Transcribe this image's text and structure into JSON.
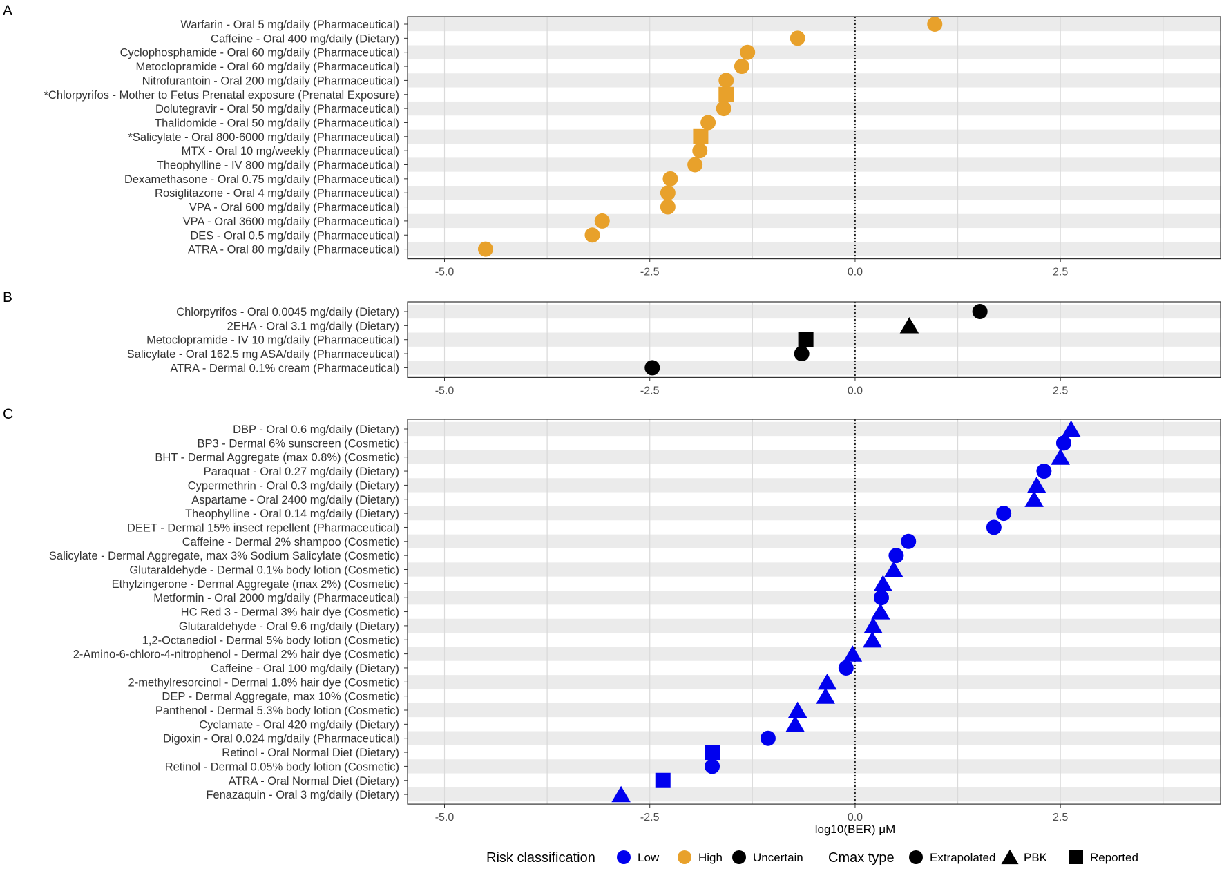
{
  "colors": {
    "Low": "#0000ee",
    "High": "#e8a12b",
    "Uncertain": "#000000",
    "stripe": "#ebebeb",
    "grid": "#dadada",
    "panel_border": "#333333"
  },
  "chart_data": [
    {
      "panel": "A",
      "type": "scatter",
      "x_ticks": [
        -5.0,
        -2.5,
        0.0,
        2.5
      ],
      "x_tick_labels": [
        "-5.0",
        "-2.5",
        "0.0",
        "2.5"
      ],
      "xlim": [
        -5.45,
        4.45
      ],
      "reference_line_x": 0,
      "xlabel": "",
      "points": [
        {
          "label": "Warfarin - Oral 5 mg/daily (Pharmaceutical)",
          "x": 0.97,
          "risk": "High",
          "cmax": "Extrapolated"
        },
        {
          "label": "Caffeine - Oral 400 mg/daily (Dietary)",
          "x": -0.7,
          "risk": "High",
          "cmax": "Extrapolated"
        },
        {
          "label": "Cyclophosphamide - Oral 60 mg/daily (Pharmaceutical)",
          "x": -1.31,
          "risk": "High",
          "cmax": "Extrapolated"
        },
        {
          "label": "Metoclopramide - Oral 60 mg/daily (Pharmaceutical)",
          "x": -1.38,
          "risk": "High",
          "cmax": "Extrapolated"
        },
        {
          "label": "Nitrofurantoin - Oral 200 mg/daily (Pharmaceutical)",
          "x": -1.57,
          "risk": "High",
          "cmax": "Extrapolated"
        },
        {
          "label": "*Chlorpyrifos - Mother to Fetus Prenatal exposure (Prenatal Exposure)",
          "x": -1.57,
          "risk": "High",
          "cmax": "Reported"
        },
        {
          "label": "Dolutegravir - Oral 50 mg/daily (Pharmaceutical)",
          "x": -1.6,
          "risk": "High",
          "cmax": "Extrapolated"
        },
        {
          "label": "Thalidomide - Oral 50 mg/daily (Pharmaceutical)",
          "x": -1.79,
          "risk": "High",
          "cmax": "Extrapolated"
        },
        {
          "label": "*Salicylate - Oral 800-6000 mg/daily (Pharmaceutical)",
          "x": -1.88,
          "risk": "High",
          "cmax": "Reported"
        },
        {
          "label": "MTX - Oral 10 mg/weekly (Pharmaceutical)",
          "x": -1.89,
          "risk": "High",
          "cmax": "Extrapolated"
        },
        {
          "label": "Theophylline - IV 800 mg/daily (Pharmaceutical)",
          "x": -1.95,
          "risk": "High",
          "cmax": "Extrapolated"
        },
        {
          "label": "Dexamethasone - Oral 0.75 mg/daily (Pharmaceutical)",
          "x": -2.25,
          "risk": "High",
          "cmax": "Extrapolated"
        },
        {
          "label": "Rosiglitazone - Oral 4 mg/daily (Pharmaceutical)",
          "x": -2.28,
          "risk": "High",
          "cmax": "Extrapolated"
        },
        {
          "label": "VPA - Oral 600 mg/daily (Pharmaceutical)",
          "x": -2.28,
          "risk": "High",
          "cmax": "Extrapolated"
        },
        {
          "label": "VPA - Oral 3600 mg/daily (Pharmaceutical)",
          "x": -3.08,
          "risk": "High",
          "cmax": "Extrapolated"
        },
        {
          "label": "DES - Oral 0.5 mg/daily (Pharmaceutical)",
          "x": -3.2,
          "risk": "High",
          "cmax": "Extrapolated"
        },
        {
          "label": "ATRA - Oral 80 mg/daily (Pharmaceutical)",
          "x": -4.5,
          "risk": "High",
          "cmax": "Extrapolated"
        }
      ]
    },
    {
      "panel": "B",
      "type": "scatter",
      "x_ticks": [
        -5.0,
        -2.5,
        0.0,
        2.5
      ],
      "x_tick_labels": [
        "-5.0",
        "-2.5",
        "0.0",
        "2.5"
      ],
      "xlim": [
        -5.45,
        4.45
      ],
      "reference_line_x": 0,
      "xlabel": "",
      "points": [
        {
          "label": "Chlorpyrifos - Oral 0.0045 mg/daily (Dietary)",
          "x": 1.52,
          "risk": "Uncertain",
          "cmax": "Extrapolated"
        },
        {
          "label": "2EHA - Oral 3.1 mg/daily (Dietary)",
          "x": 0.66,
          "risk": "Uncertain",
          "cmax": "PBK"
        },
        {
          "label": "Metoclopramide - IV 10 mg/daily (Pharmaceutical)",
          "x": -0.6,
          "risk": "Uncertain",
          "cmax": "Reported"
        },
        {
          "label": "Salicylate - Oral 162.5 mg ASA/daily (Pharmaceutical)",
          "x": -0.65,
          "risk": "Uncertain",
          "cmax": "Extrapolated"
        },
        {
          "label": "ATRA - Dermal 0.1% cream (Pharmaceutical)",
          "x": -2.47,
          "risk": "Uncertain",
          "cmax": "Extrapolated"
        }
      ]
    },
    {
      "panel": "C",
      "type": "scatter",
      "x_ticks": [
        -5.0,
        -2.5,
        0.0,
        2.5
      ],
      "x_tick_labels": [
        "-5.0",
        "-2.5",
        "0.0",
        "2.5"
      ],
      "xlim": [
        -5.45,
        4.45
      ],
      "reference_line_x": 0,
      "xlabel": "log10(BER) μM",
      "points": [
        {
          "label": "DBP - Oral 0.6 mg/daily (Dietary)",
          "x": 2.63,
          "risk": "Low",
          "cmax": "PBK"
        },
        {
          "label": "BP3 - Dermal 6% sunscreen (Cosmetic)",
          "x": 2.54,
          "risk": "Low",
          "cmax": "Extrapolated"
        },
        {
          "label": "BHT - Dermal Aggregate (max 0.8%) (Cosmetic)",
          "x": 2.5,
          "risk": "Low",
          "cmax": "PBK"
        },
        {
          "label": "Paraquat - Oral 0.27 mg/daily (Dietary)",
          "x": 2.3,
          "risk": "Low",
          "cmax": "Extrapolated"
        },
        {
          "label": "Cypermethrin - Oral 0.3 mg/daily (Dietary)",
          "x": 2.21,
          "risk": "Low",
          "cmax": "PBK"
        },
        {
          "label": "Aspartame - Oral 2400 mg/daily (Dietary)",
          "x": 2.18,
          "risk": "Low",
          "cmax": "PBK"
        },
        {
          "label": "Theophylline - Oral 0.14 mg/daily (Dietary)",
          "x": 1.81,
          "risk": "Low",
          "cmax": "Extrapolated"
        },
        {
          "label": "DEET - Dermal 15% insect repellent (Pharmaceutical)",
          "x": 1.69,
          "risk": "Low",
          "cmax": "Extrapolated"
        },
        {
          "label": "Caffeine - Dermal 2% shampoo (Cosmetic)",
          "x": 0.65,
          "risk": "Low",
          "cmax": "Extrapolated"
        },
        {
          "label": "Salicylate - Dermal Aggregate, max 3% Sodium Salicylate (Cosmetic)",
          "x": 0.5,
          "risk": "Low",
          "cmax": "Extrapolated"
        },
        {
          "label": "Glutaraldehyde - Dermal 0.1% body lotion (Cosmetic)",
          "x": 0.47,
          "risk": "Low",
          "cmax": "PBK"
        },
        {
          "label": "Ethylzingerone - Dermal Aggregate (max 2%) (Cosmetic)",
          "x": 0.34,
          "risk": "Low",
          "cmax": "PBK"
        },
        {
          "label": "Metformin - Oral 2000 mg/daily (Pharmaceutical)",
          "x": 0.32,
          "risk": "Low",
          "cmax": "Extrapolated"
        },
        {
          "label": "HC Red 3 - Dermal 3% hair dye (Cosmetic)",
          "x": 0.31,
          "risk": "Low",
          "cmax": "PBK"
        },
        {
          "label": "Glutaraldehyde - Oral 9.6 mg/daily (Dietary)",
          "x": 0.22,
          "risk": "Low",
          "cmax": "PBK"
        },
        {
          "label": "1,2-Octanediol - Dermal 5% body lotion (Cosmetic)",
          "x": 0.21,
          "risk": "Low",
          "cmax": "PBK"
        },
        {
          "label": "2-Amino-6-chloro-4-nitrophenol - Dermal 2% hair dye (Cosmetic)",
          "x": -0.03,
          "risk": "Low",
          "cmax": "PBK"
        },
        {
          "label": "Caffeine - Oral 100 mg/daily (Dietary)",
          "x": -0.11,
          "risk": "Low",
          "cmax": "Extrapolated"
        },
        {
          "label": "2-methylresorcinol - Dermal 1.8% hair dye (Cosmetic)",
          "x": -0.34,
          "risk": "Low",
          "cmax": "PBK"
        },
        {
          "label": "DEP - Dermal Aggregate, max 10% (Cosmetic)",
          "x": -0.36,
          "risk": "Low",
          "cmax": "PBK"
        },
        {
          "label": "Panthenol - Dermal 5.3% body lotion (Cosmetic)",
          "x": -0.7,
          "risk": "Low",
          "cmax": "PBK"
        },
        {
          "label": "Cyclamate - Oral 420 mg/daily (Dietary)",
          "x": -0.73,
          "risk": "Low",
          "cmax": "PBK"
        },
        {
          "label": "Digoxin - Oral 0.024 mg/daily (Pharmaceutical)",
          "x": -1.06,
          "risk": "Low",
          "cmax": "Extrapolated"
        },
        {
          "label": "Retinol - Oral Normal Diet (Dietary)",
          "x": -1.74,
          "risk": "Low",
          "cmax": "Reported"
        },
        {
          "label": "Retinol - Dermal 0.05% body lotion (Cosmetic)",
          "x": -1.74,
          "risk": "Low",
          "cmax": "Extrapolated"
        },
        {
          "label": "ATRA - Oral Normal Diet (Dietary)",
          "x": -2.34,
          "risk": "Low",
          "cmax": "Reported"
        },
        {
          "label": "Fenazaquin - Oral 3 mg/daily (Dietary)",
          "x": -2.85,
          "risk": "Low",
          "cmax": "PBK"
        }
      ]
    }
  ],
  "legend": {
    "risk_title": "Risk classification",
    "risk_items": [
      {
        "key": "Low",
        "label": "Low"
      },
      {
        "key": "High",
        "label": "High"
      },
      {
        "key": "Uncertain",
        "label": "Uncertain"
      }
    ],
    "cmax_title": "Cmax type",
    "cmax_items": [
      {
        "shape": "Extrapolated",
        "label": "Extrapolated"
      },
      {
        "shape": "PBK",
        "label": "PBK"
      },
      {
        "shape": "Reported",
        "label": "Reported"
      }
    ]
  }
}
